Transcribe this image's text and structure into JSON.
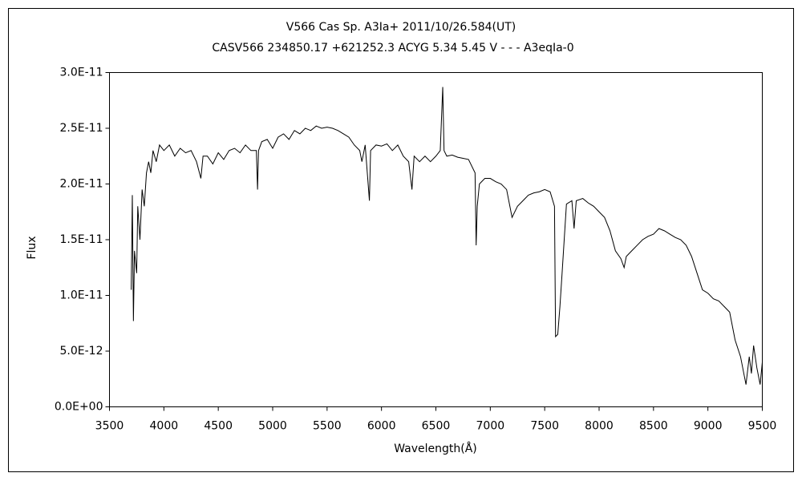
{
  "chart_data": {
    "type": "line",
    "title": "V566 Cas    Sp. A3Ia+    2011/10/26.584(UT)",
    "subtitle": "CASV566 234850.17 +621252.3 ACYG 5.34 5.45 V - - - A3eqIa-0",
    "xlabel": "Wavelength(Å)",
    "ylabel": "Flux",
    "color": "#000000",
    "xlim": [
      3500,
      9500
    ],
    "xticks": [
      3500,
      4000,
      4500,
      5000,
      5500,
      6000,
      6500,
      7000,
      7500,
      8000,
      8500,
      9000,
      9500
    ],
    "ylim": [
      0,
      3e-11
    ],
    "yticks": [
      {
        "value": 0,
        "label": "0.0E+00"
      },
      {
        "value": 5e-12,
        "label": "5.0E-12"
      },
      {
        "value": 1e-11,
        "label": "1.0E-11"
      },
      {
        "value": 1.5e-11,
        "label": "1.5E-11"
      },
      {
        "value": 2e-11,
        "label": "2.0E-11"
      },
      {
        "value": 2.5e-11,
        "label": "2.5E-11"
      },
      {
        "value": 3e-11,
        "label": "3.0E-11"
      }
    ],
    "x": [
      3700,
      3710,
      3720,
      3730,
      3750,
      3760,
      3780,
      3800,
      3820,
      3840,
      3860,
      3880,
      3900,
      3930,
      3960,
      4000,
      4050,
      4100,
      4150,
      4200,
      4250,
      4300,
      4340,
      4360,
      4400,
      4450,
      4500,
      4550,
      4600,
      4650,
      4700,
      4750,
      4800,
      4850,
      4861,
      4870,
      4900,
      4950,
      5000,
      5050,
      5100,
      5150,
      5200,
      5250,
      5300,
      5350,
      5400,
      5450,
      5500,
      5550,
      5600,
      5650,
      5700,
      5750,
      5800,
      5820,
      5850,
      5889,
      5900,
      5950,
      6000,
      6050,
      6100,
      6150,
      6200,
      6250,
      6280,
      6300,
      6350,
      6400,
      6450,
      6500,
      6540,
      6563,
      6575,
      6600,
      6650,
      6700,
      6750,
      6800,
      6860,
      6870,
      6880,
      6900,
      6950,
      7000,
      7050,
      7100,
      7150,
      7200,
      7250,
      7300,
      7350,
      7400,
      7450,
      7500,
      7550,
      7590,
      7600,
      7620,
      7640,
      7660,
      7700,
      7750,
      7770,
      7790,
      7850,
      7900,
      7950,
      8000,
      8050,
      8100,
      8150,
      8200,
      8230,
      8250,
      8300,
      8350,
      8400,
      8450,
      8500,
      8550,
      8600,
      8650,
      8700,
      8750,
      8800,
      8850,
      8900,
      8950,
      9000,
      9050,
      9100,
      9150,
      9200,
      9250,
      9300,
      9350,
      9380,
      9400,
      9420,
      9450,
      9480,
      9500
    ],
    "values": [
      1.05e-11,
      1.9e-11,
      7.7e-12,
      1.4e-11,
      1.2e-11,
      1.8e-11,
      1.5e-11,
      1.95e-11,
      1.8e-11,
      2.1e-11,
      2.2e-11,
      2.1e-11,
      2.3e-11,
      2.2e-11,
      2.35e-11,
      2.3e-11,
      2.35e-11,
      2.25e-11,
      2.32e-11,
      2.28e-11,
      2.3e-11,
      2.2e-11,
      2.05e-11,
      2.25e-11,
      2.25e-11,
      2.18e-11,
      2.28e-11,
      2.22e-11,
      2.3e-11,
      2.32e-11,
      2.28e-11,
      2.35e-11,
      2.3e-11,
      2.3e-11,
      1.95e-11,
      2.3e-11,
      2.38e-11,
      2.4e-11,
      2.32e-11,
      2.42e-11,
      2.45e-11,
      2.4e-11,
      2.48e-11,
      2.45e-11,
      2.5e-11,
      2.48e-11,
      2.52e-11,
      2.5e-11,
      2.51e-11,
      2.5e-11,
      2.48e-11,
      2.45e-11,
      2.42e-11,
      2.35e-11,
      2.3e-11,
      2.2e-11,
      2.35e-11,
      1.85e-11,
      2.3e-11,
      2.35e-11,
      2.34e-11,
      2.36e-11,
      2.3e-11,
      2.35e-11,
      2.25e-11,
      2.2e-11,
      1.95e-11,
      2.25e-11,
      2.2e-11,
      2.25e-11,
      2.2e-11,
      2.25e-11,
      2.3e-11,
      2.87e-11,
      2.3e-11,
      2.25e-11,
      2.26e-11,
      2.24e-11,
      2.23e-11,
      2.22e-11,
      2.1e-11,
      1.45e-11,
      1.8e-11,
      2e-11,
      2.05e-11,
      2.05e-11,
      2.02e-11,
      2e-11,
      1.95e-11,
      1.7e-11,
      1.8e-11,
      1.85e-11,
      1.9e-11,
      1.92e-11,
      1.93e-11,
      1.95e-11,
      1.93e-11,
      1.8e-11,
      6.3e-12,
      6.5e-12,
      9e-12,
      1.2e-11,
      1.82e-11,
      1.85e-11,
      1.6e-11,
      1.85e-11,
      1.87e-11,
      1.83e-11,
      1.8e-11,
      1.75e-11,
      1.7e-11,
      1.58e-11,
      1.4e-11,
      1.33e-11,
      1.25e-11,
      1.35e-11,
      1.4e-11,
      1.45e-11,
      1.5e-11,
      1.53e-11,
      1.55e-11,
      1.6e-11,
      1.58e-11,
      1.55e-11,
      1.52e-11,
      1.5e-11,
      1.45e-11,
      1.35e-11,
      1.2e-11,
      1.05e-11,
      1.02e-11,
      9.7e-12,
      9.5e-12,
      9e-12,
      8.5e-12,
      6e-12,
      4.5e-12,
      2e-12,
      4.5e-12,
      3e-12,
      5.5e-12,
      3.5e-12,
      2e-12,
      4e-12
    ]
  }
}
